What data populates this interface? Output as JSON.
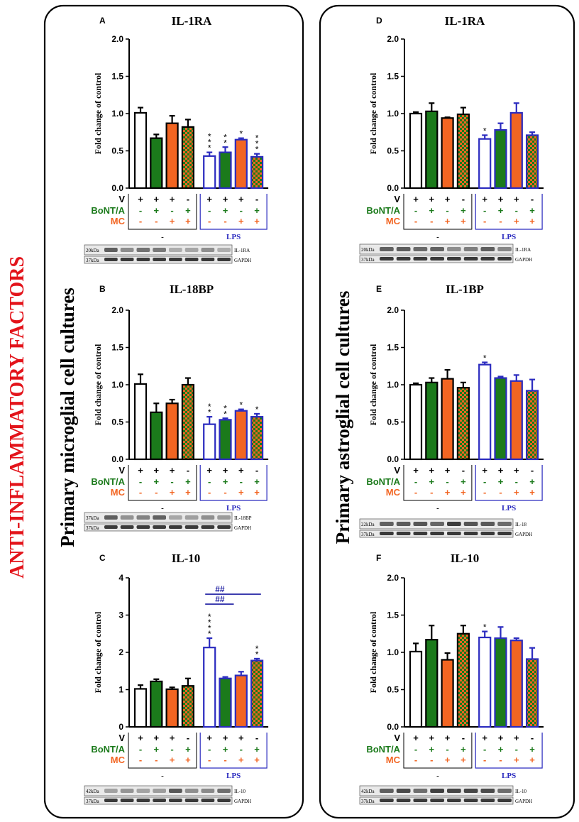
{
  "side_label": "ANTI-INFLAMMATORY  FACTORS",
  "columns": [
    {
      "label": "Primary microglial cell cultures"
    },
    {
      "label": "Primary astroglial cell cultures"
    }
  ],
  "treatment_table": {
    "row_labels": [
      "V",
      "BoNT/A",
      "MC"
    ],
    "rows": [
      [
        "+",
        "+",
        "+",
        "-",
        "+",
        "+",
        "+",
        "-"
      ],
      [
        "-",
        "+",
        "-",
        "+",
        "-",
        "+",
        "-",
        "+"
      ],
      [
        "-",
        "-",
        "+",
        "+",
        "-",
        "-",
        "+",
        "+"
      ]
    ],
    "group_labels": [
      "-",
      "LPS"
    ]
  },
  "colors": {
    "side_label": "#e3141b",
    "bonta": "#1b7a1b",
    "mc": "#f26522",
    "lps": "#2b2bbf",
    "control_border": "#000000",
    "hash": "#1a1aa0"
  },
  "chart_data": [
    {
      "id": "A",
      "type": "bar",
      "title": "IL-1RA",
      "ylabel": "Fold change of control",
      "ylim": [
        0,
        2.0
      ],
      "yticks": [
        "0.0",
        "0.5",
        "1.0",
        "1.5",
        "2.0"
      ],
      "ytick_values": [
        0,
        0.5,
        1.0,
        1.5,
        2.0
      ],
      "categories": [
        "V",
        "BoNT/A",
        "MC",
        "BoNT/A+MC",
        "LPS+V",
        "LPS+BoNT/A",
        "LPS+MC",
        "LPS+BoNT/A+MC"
      ],
      "values": [
        1.01,
        0.67,
        0.87,
        0.82,
        0.43,
        0.48,
        0.65,
        0.42
      ],
      "errors": [
        0.07,
        0.05,
        0.1,
        0.1,
        0.05,
        0.07,
        0.02,
        0.04
      ],
      "significance": [
        "",
        "",
        "",
        "",
        "***",
        "**",
        "*",
        "***"
      ],
      "blot": {
        "target_label": "IL-1RA",
        "target_kda": "20kDa",
        "ref_label": "GAPDH",
        "ref_kda": "37kDa"
      }
    },
    {
      "id": "B",
      "type": "bar",
      "title": "IL-18BP",
      "ylabel": "Fold change of control",
      "ylim": [
        0,
        2.0
      ],
      "yticks": [
        "0.0",
        "0.5",
        "1.0",
        "1.5",
        "2.0"
      ],
      "ytick_values": [
        0,
        0.5,
        1.0,
        1.5,
        2.0
      ],
      "categories": [
        "V",
        "BoNT/A",
        "MC",
        "BoNT/A+MC",
        "LPS+V",
        "LPS+BoNT/A",
        "LPS+MC",
        "LPS+BoNT/A+MC"
      ],
      "values": [
        1.01,
        0.63,
        0.75,
        1.0,
        0.47,
        0.53,
        0.65,
        0.57
      ],
      "errors": [
        0.13,
        0.12,
        0.05,
        0.09,
        0.1,
        0.02,
        0.02,
        0.04
      ],
      "significance": [
        "",
        "",
        "",
        "",
        "**",
        "**",
        "*",
        "*"
      ],
      "blot": {
        "target_label": "IL-18BP",
        "target_kda": "37kDa",
        "ref_label": "GAPDH",
        "ref_kda": "37kDa"
      }
    },
    {
      "id": "C",
      "type": "bar",
      "title": "IL-10",
      "ylabel": "Fold change of control",
      "ylim": [
        0,
        4
      ],
      "yticks": [
        "0",
        "1",
        "2",
        "3",
        "4"
      ],
      "ytick_values": [
        0,
        1,
        2,
        3,
        4
      ],
      "categories": [
        "V",
        "BoNT/A",
        "MC",
        "BoNT/A+MC",
        "LPS+V",
        "LPS+BoNT/A",
        "LPS+MC",
        "LPS+BoNT/A+MC"
      ],
      "values": [
        1.02,
        1.22,
        1.01,
        1.1,
        2.13,
        1.3,
        1.38,
        1.78
      ],
      "errors": [
        0.1,
        0.06,
        0.05,
        0.2,
        0.25,
        0.04,
        0.1,
        0.05
      ],
      "significance": [
        "",
        "",
        "",
        "",
        "****",
        "",
        "",
        "**"
      ],
      "comparisons": [
        {
          "label": "##",
          "from": 4,
          "to": 5
        },
        {
          "label": "##",
          "from": 4,
          "to": 6
        }
      ],
      "blot": {
        "target_label": "IL-10",
        "target_kda": "42kDa",
        "ref_label": "GAPDH",
        "ref_kda": "37kDa"
      }
    },
    {
      "id": "D",
      "type": "bar",
      "title": "IL-1RA",
      "ylabel": "Fold change of control",
      "ylim": [
        0,
        2.0
      ],
      "yticks": [
        "0.0",
        "0.5",
        "1.0",
        "1.5",
        "2.0"
      ],
      "ytick_values": [
        0,
        0.5,
        1.0,
        1.5,
        2.0
      ],
      "categories": [
        "V",
        "BoNT/A",
        "MC",
        "BoNT/A+MC",
        "LPS+V",
        "LPS+BoNT/A",
        "LPS+MC",
        "LPS+BoNT/A+MC"
      ],
      "values": [
        1.0,
        1.03,
        0.94,
        0.99,
        0.66,
        0.78,
        1.01,
        0.71
      ],
      "errors": [
        0.02,
        0.11,
        0.01,
        0.09,
        0.05,
        0.09,
        0.13,
        0.04
      ],
      "significance": [
        "",
        "",
        "",
        "",
        "*",
        "",
        "",
        ""
      ],
      "blot": {
        "target_label": "IL-1RA",
        "target_kda": "20kDa",
        "ref_label": "GAPDH",
        "ref_kda": "37kDa"
      }
    },
    {
      "id": "E",
      "type": "bar",
      "title": "IL-1BP",
      "ylabel": "Fold change of control",
      "ylim": [
        0,
        2.0
      ],
      "yticks": [
        "0.0",
        "0.5",
        "1.0",
        "1.5",
        "2.0"
      ],
      "ytick_values": [
        0,
        0.5,
        1.0,
        1.5,
        2.0
      ],
      "categories": [
        "V",
        "BoNT/A",
        "MC",
        "BoNT/A+MC",
        "LPS+V",
        "LPS+BoNT/A",
        "LPS+MC",
        "LPS+BoNT/A+MC"
      ],
      "values": [
        1.0,
        1.03,
        1.08,
        0.96,
        1.27,
        1.09,
        1.05,
        0.92
      ],
      "errors": [
        0.02,
        0.06,
        0.12,
        0.07,
        0.03,
        0.02,
        0.08,
        0.15
      ],
      "significance": [
        "",
        "",
        "",
        "",
        "*",
        "",
        "",
        ""
      ],
      "blot": {
        "target_label": "IL-18",
        "target_kda": "22kDa",
        "ref_label": "GAPDH",
        "ref_kda": "37kDa"
      }
    },
    {
      "id": "F",
      "type": "bar",
      "title": "IL-10",
      "ylabel": "Fold change of control",
      "ylim": [
        0,
        2.0
      ],
      "yticks": [
        "0.0",
        "0.5",
        "1.0",
        "1.5",
        "2.0"
      ],
      "ytick_values": [
        0,
        0.5,
        1.0,
        1.5,
        2.0
      ],
      "categories": [
        "V",
        "BoNT/A",
        "MC",
        "BoNT/A+MC",
        "LPS+V",
        "LPS+BoNT/A",
        "LPS+MC",
        "LPS+BoNT/A+MC"
      ],
      "values": [
        1.01,
        1.17,
        0.9,
        1.25,
        1.2,
        1.19,
        1.16,
        0.91
      ],
      "errors": [
        0.11,
        0.19,
        0.09,
        0.11,
        0.08,
        0.15,
        0.03,
        0.15
      ],
      "significance": [
        "",
        "",
        "",
        "",
        "*",
        "",
        "",
        ""
      ],
      "blot": {
        "target_label": "IL-10",
        "target_kda": "42kDa",
        "ref_label": "GAPDH",
        "ref_kda": "37kDa"
      }
    }
  ]
}
